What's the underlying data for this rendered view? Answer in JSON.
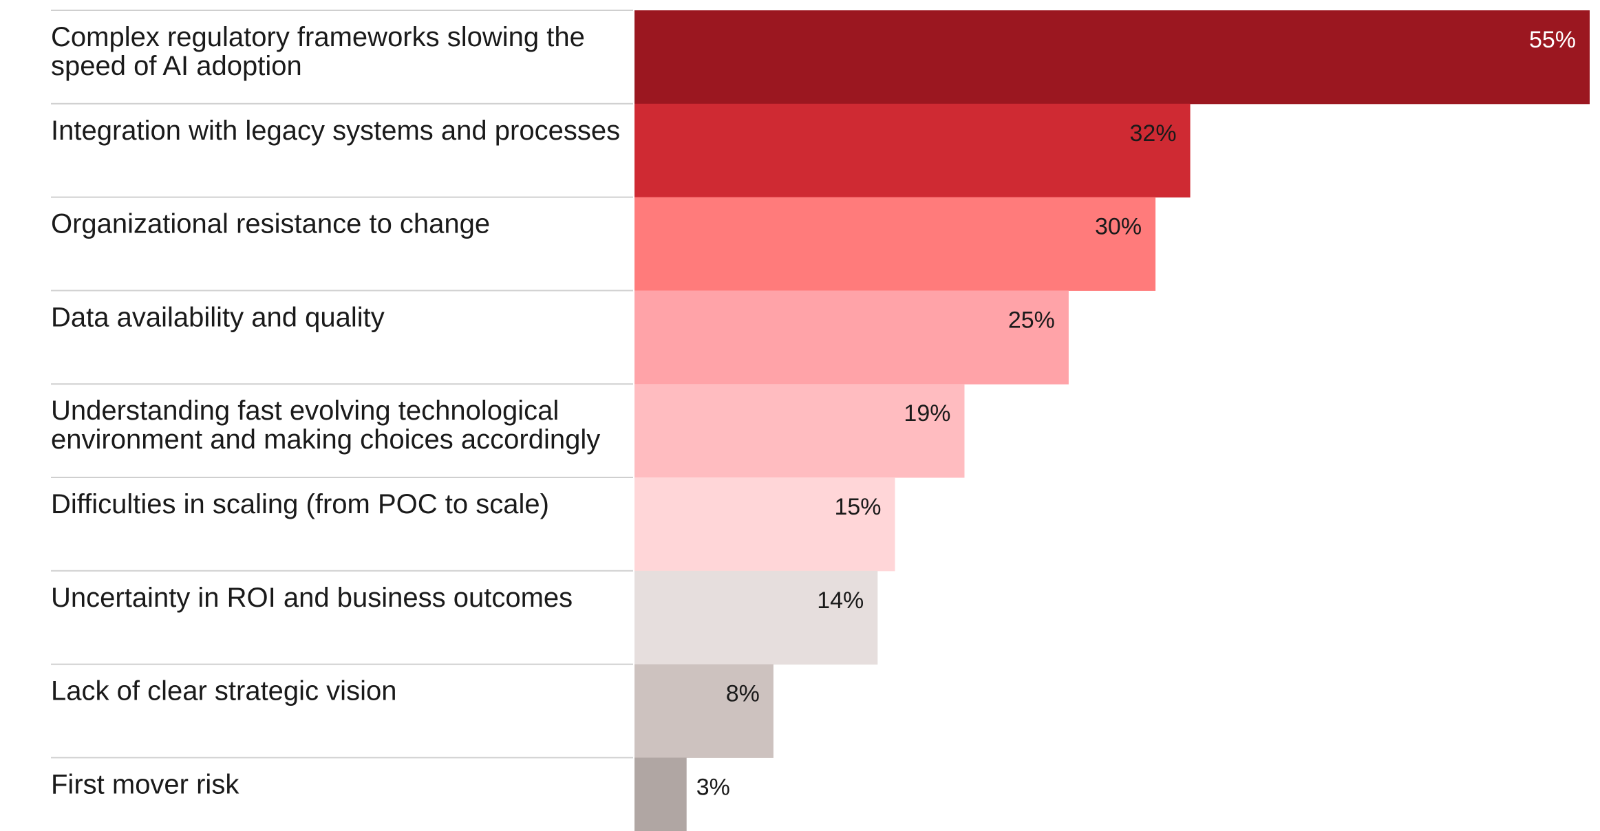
{
  "chart_data": {
    "type": "bar",
    "orientation": "horizontal",
    "categories": [
      [
        "Complex regulatory frameworks slowing the",
        "speed of AI adoption"
      ],
      [
        "Integration with legacy systems and processes"
      ],
      [
        "Organizational resistance to change"
      ],
      [
        "Data availability and quality"
      ],
      [
        "Understanding fast evolving technological",
        "environment and making choices accordingly"
      ],
      [
        "Difficulties in scaling (from POC to scale)"
      ],
      [
        "Uncertainty in ROI and business outcomes"
      ],
      [
        "Lack of clear strategic vision"
      ],
      [
        "First mover risk"
      ]
    ],
    "values": [
      55,
      32,
      30,
      25,
      19,
      15,
      14,
      8,
      3
    ],
    "value_labels": [
      "55%",
      "32%",
      "30%",
      "25%",
      "19%",
      "15%",
      "14%",
      "8%",
      "3%"
    ],
    "unit": "%",
    "xlim": [
      0,
      55
    ],
    "bar_colors": [
      "#9b1720",
      "#cf2a33",
      "#ff7b7b",
      "#ffa3a8",
      "#ffbcc0",
      "#ffd6d8",
      "#e6dedd",
      "#cdc2bf",
      "#b0a6a3"
    ],
    "label_colors": [
      "#ffffff",
      "#1a1a1a",
      "#1a1a1a",
      "#1a1a1a",
      "#1a1a1a",
      "#1a1a1a",
      "#1a1a1a",
      "#1a1a1a",
      "#1a1a1a"
    ],
    "separator_color": "#cfcfcf",
    "grid": false,
    "legend": "none"
  }
}
